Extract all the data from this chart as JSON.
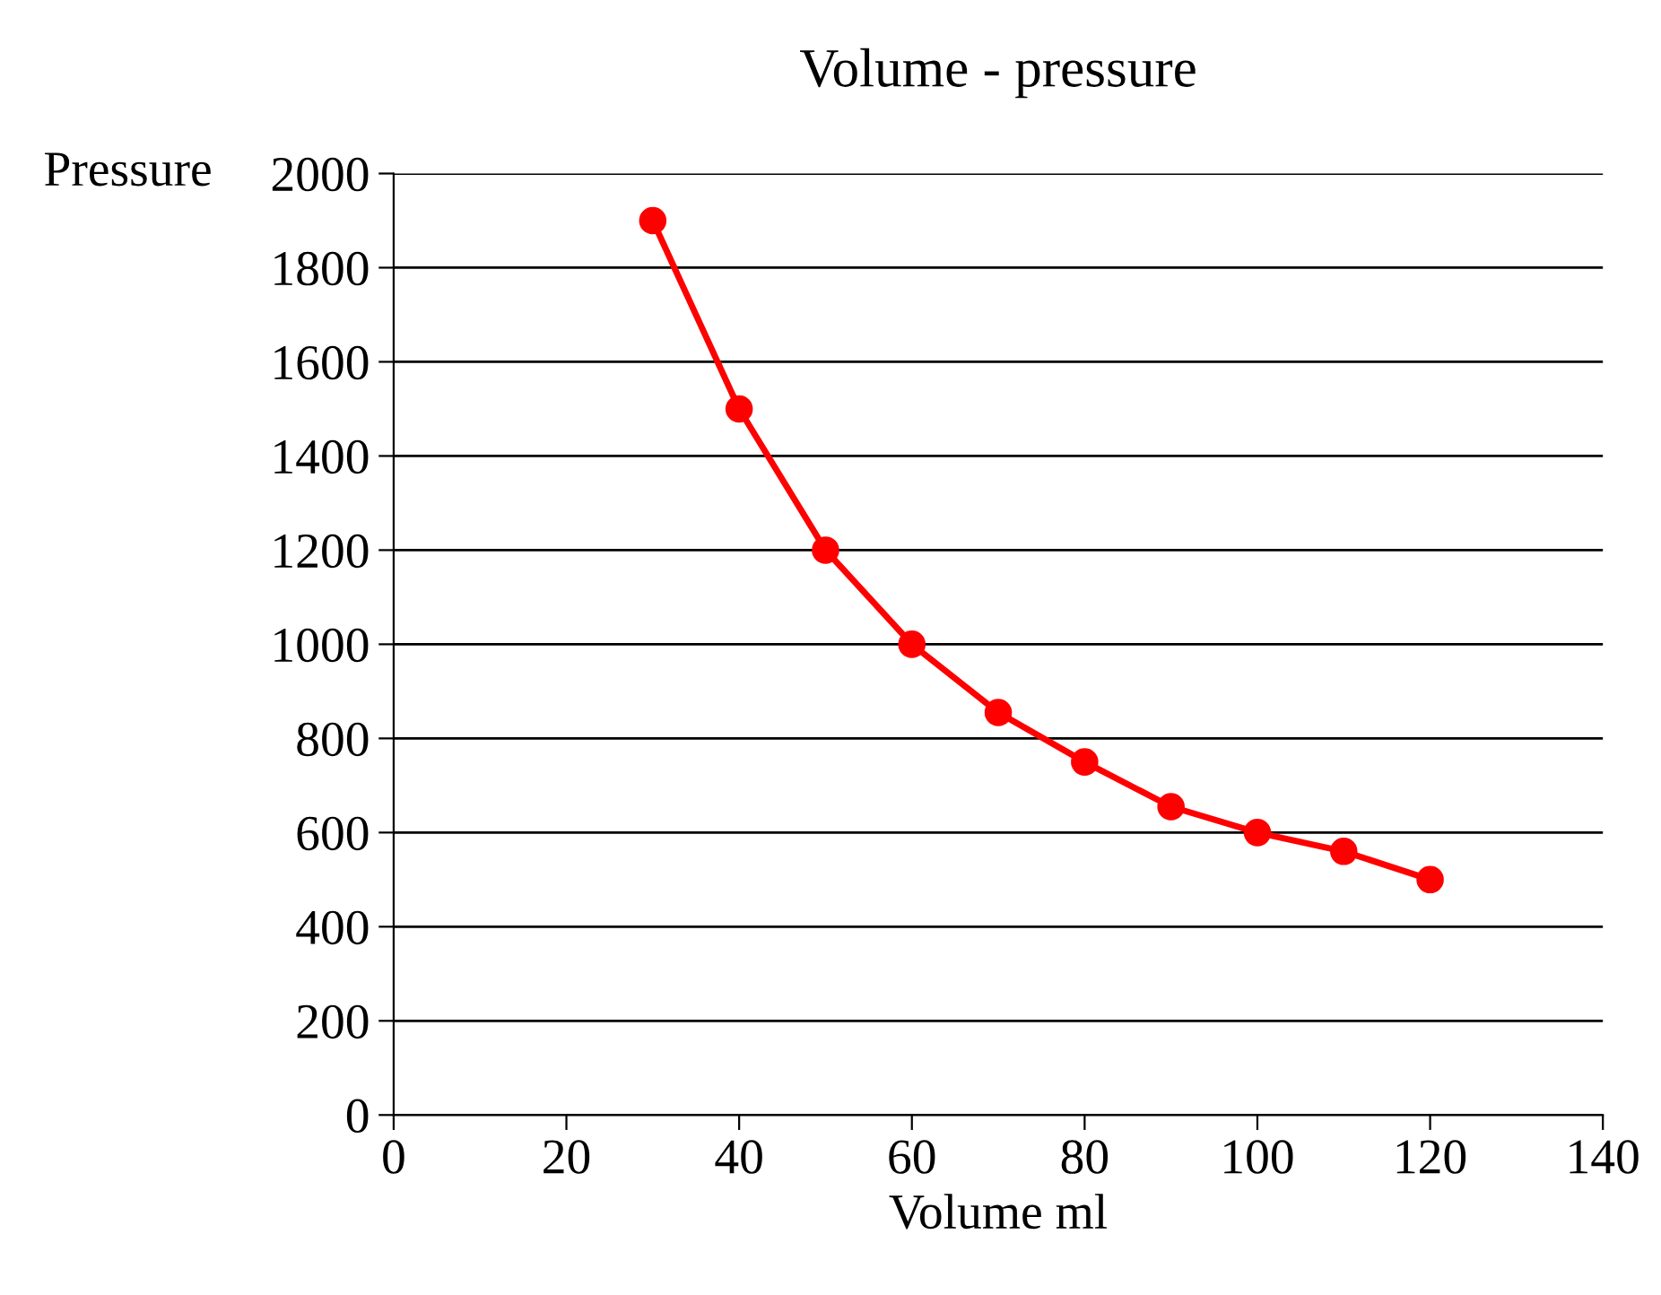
{
  "chart_data": {
    "type": "line",
    "title": "Volume - pressure",
    "xlabel": "Volume ml",
    "ylabel": "Pressure",
    "x": [
      30,
      40,
      50,
      60,
      70,
      80,
      90,
      100,
      110,
      120
    ],
    "series": [
      {
        "color": "#ff0000",
        "values": [
          1900,
          1500,
          1200,
          1000,
          855,
          750,
          655,
          600,
          560,
          500
        ]
      }
    ],
    "xlim": [
      0,
      140
    ],
    "xticks": [
      0,
      20,
      40,
      60,
      80,
      100,
      120,
      140
    ],
    "ylim": [
      0,
      2000
    ],
    "yticks": [
      0,
      200,
      400,
      600,
      800,
      1000,
      1200,
      1400,
      1600,
      1800,
      2000
    ],
    "grid": "y",
    "marker": "circle",
    "line_style": "solid",
    "legend": false
  }
}
